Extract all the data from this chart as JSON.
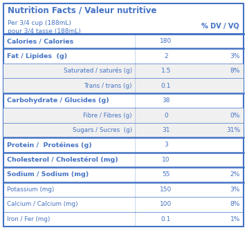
{
  "title": "Nutrition Facts / Valeur nutritive",
  "serving_line1": "Per 3/4 cup (188mL)",
  "serving_line2": "pour 3/4 tasse (188mL)",
  "dv_header": "% DV / VQ",
  "text_color": "#4472C4",
  "bg_color": "#FFFFFF",
  "border_color": "#4472C4",
  "rows": [
    {
      "label": "Calories / Calories",
      "bold": true,
      "indent": false,
      "value": "180",
      "dv": "",
      "thick_top": true,
      "thick_bottom": false,
      "sub_bg": false
    },
    {
      "label": "Fat / Lipides  (g)",
      "bold": true,
      "indent": false,
      "value": "2",
      "dv": "3%",
      "thick_top": true,
      "thick_bottom": false,
      "sub_bg": false
    },
    {
      "label": "Saturated / saturés (g)",
      "bold": false,
      "indent": true,
      "value": "1.5",
      "dv": "8%",
      "thick_top": false,
      "thick_bottom": false,
      "sub_bg": true
    },
    {
      "label": "Trans / trans (g)",
      "bold": false,
      "indent": true,
      "value": "0.1",
      "dv": "",
      "thick_top": false,
      "thick_bottom": false,
      "sub_bg": true
    },
    {
      "label": "Carbohydrate / Glucides (g)",
      "bold": true,
      "indent": false,
      "value": "38",
      "dv": "",
      "thick_top": true,
      "thick_bottom": false,
      "sub_bg": false
    },
    {
      "label": "Fibre / Fibres (g)",
      "bold": false,
      "indent": true,
      "value": "0",
      "dv": "0%",
      "thick_top": false,
      "thick_bottom": false,
      "sub_bg": true
    },
    {
      "label": "Sugars / Sucres  (g)",
      "bold": false,
      "indent": true,
      "value": "31",
      "dv": "31%",
      "thick_top": false,
      "thick_bottom": false,
      "sub_bg": true
    },
    {
      "label": "Protein /  Protéines (g)",
      "bold": true,
      "indent": false,
      "value": "3",
      "dv": "",
      "thick_top": true,
      "thick_bottom": false,
      "sub_bg": false
    },
    {
      "label": "Cholesterol / Cholestérol (mg)",
      "bold": true,
      "indent": false,
      "value": "10",
      "dv": "",
      "thick_top": true,
      "thick_bottom": false,
      "sub_bg": false
    },
    {
      "label": "Sodium / Sodium (mg)",
      "bold": true,
      "indent": false,
      "value": "55",
      "dv": "2%",
      "thick_top": true,
      "thick_bottom": true,
      "sub_bg": false
    },
    {
      "label": "Potassium (mg)",
      "bold": false,
      "indent": false,
      "value": "150",
      "dv": "3%",
      "thick_top": false,
      "thick_bottom": false,
      "sub_bg": false
    },
    {
      "label": "Calcium / Calcium (mg)",
      "bold": false,
      "indent": false,
      "value": "100",
      "dv": "8%",
      "thick_top": false,
      "thick_bottom": false,
      "sub_bg": false
    },
    {
      "label": "Iron / Fer (mg)",
      "bold": false,
      "indent": false,
      "value": "0.1",
      "dv": "1%",
      "thick_top": false,
      "thick_bottom": false,
      "sub_bg": false
    }
  ]
}
